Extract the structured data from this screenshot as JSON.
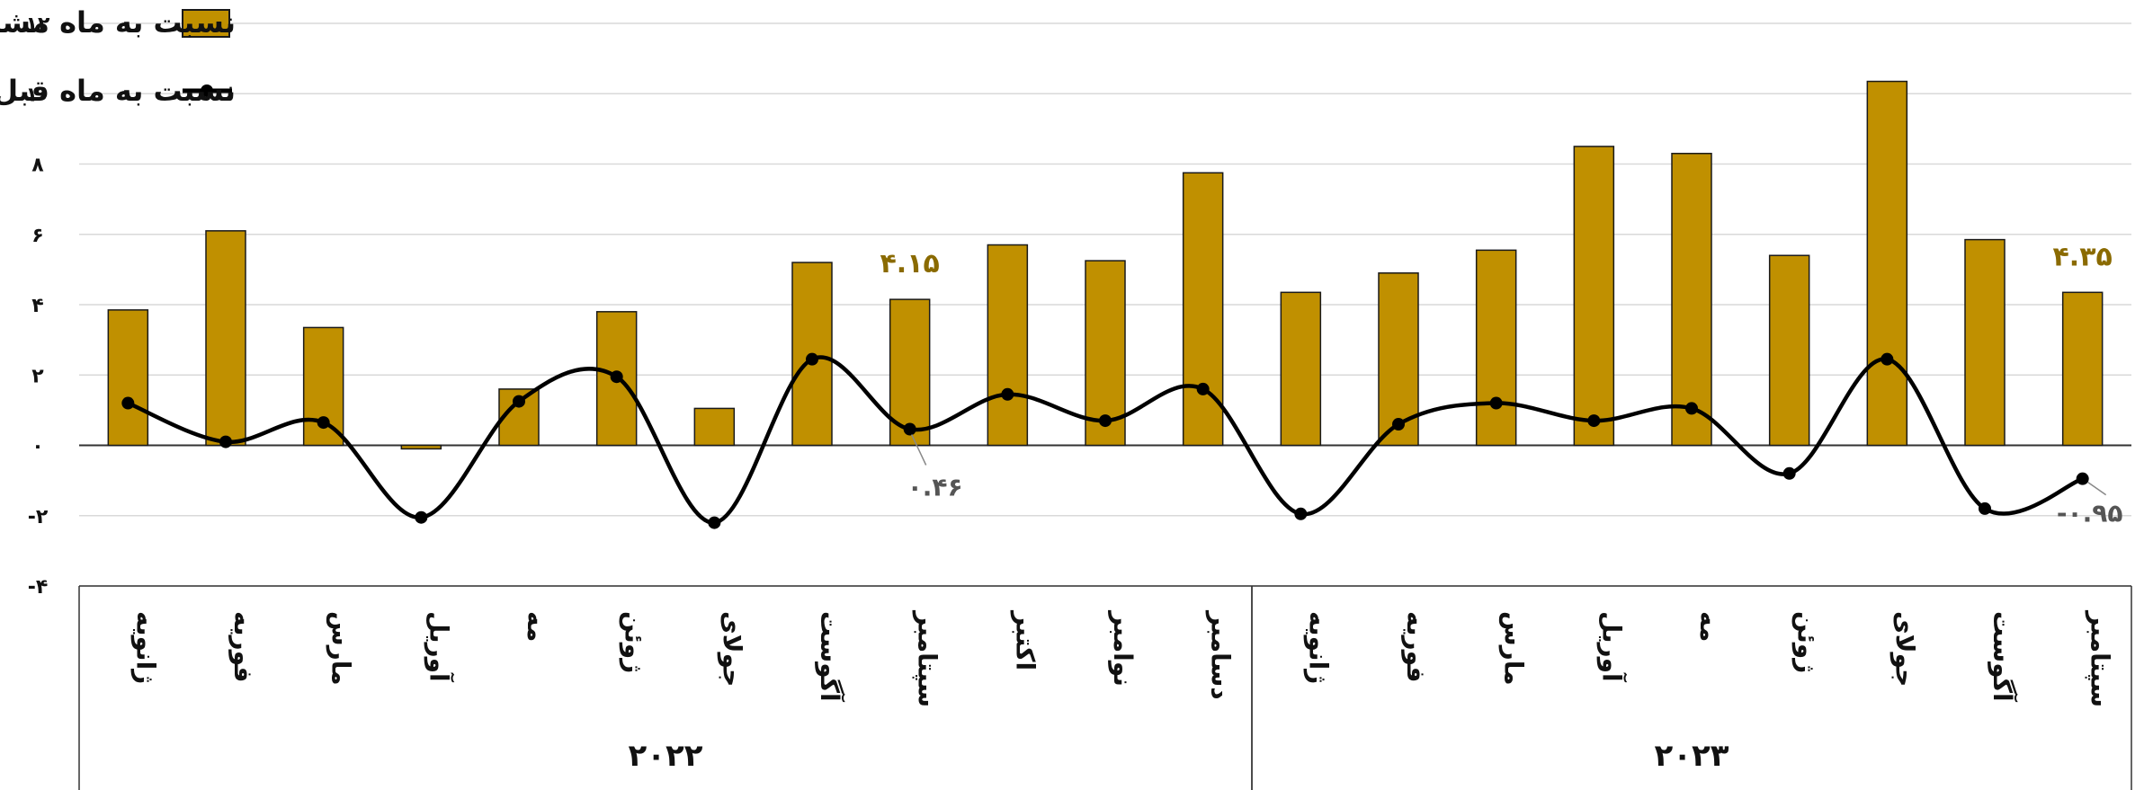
{
  "colors": {
    "bar": "#C09000",
    "bar_stroke": "#1a1a1a",
    "line": "#000000",
    "grid": "#d9d9d9",
    "annotation_gold": "#8a6a00",
    "annotation_gray": "#555555"
  },
  "legend": {
    "bar_label": "نسبت به ماه مشابه سال قبل",
    "line_label": "نسبت به ماه قبل"
  },
  "chart_data": {
    "type": "bar",
    "yticks": [
      "-۴",
      "-۲",
      "۰",
      "۲",
      "۴",
      "۶",
      "۸",
      "۱۰",
      "۱۲"
    ],
    "ytick_values": [
      -4,
      -2,
      0,
      2,
      4,
      6,
      8,
      10,
      12
    ],
    "ylim": [
      -4,
      12
    ],
    "grid": true,
    "legend_position": "top-left",
    "categories": [
      "ژانویه",
      "فوریه",
      "مارس",
      "آوریل",
      "مه",
      "ژوئن",
      "جولای",
      "آگوست",
      "سپتامبر",
      "اکتبر",
      "نوامبر",
      "دسامبر",
      "ژانویه",
      "فوریه",
      "مارس",
      "آوریل",
      "مه",
      "ژوئن",
      "جولای",
      "آگوست",
      "سپتامبر"
    ],
    "groups": [
      {
        "label": "۲۰۲۲",
        "start": 0,
        "count": 12
      },
      {
        "label": "۲۰۲۳",
        "start": 12,
        "count": 9
      }
    ],
    "series": [
      {
        "name": "نسبت به ماه مشابه سال قبل",
        "type": "bar",
        "values": [
          3.85,
          6.1,
          3.35,
          -0.1,
          1.6,
          3.8,
          1.05,
          5.2,
          4.15,
          5.7,
          5.25,
          7.75,
          4.35,
          4.9,
          5.55,
          8.5,
          8.3,
          5.4,
          10.35,
          5.85,
          4.35
        ]
      },
      {
        "name": "نسبت به ماه قبل",
        "type": "line",
        "values": [
          1.2,
          0.1,
          0.65,
          -2.05,
          1.25,
          1.95,
          -2.2,
          2.45,
          0.46,
          1.45,
          0.7,
          1.6,
          -1.95,
          0.6,
          1.2,
          0.7,
          1.05,
          -0.8,
          2.45,
          -1.8,
          -0.95
        ]
      }
    ],
    "annotations": [
      {
        "index": 8,
        "series": "bar",
        "text": "۴.۱۵"
      },
      {
        "index": 20,
        "series": "bar",
        "text": "۴.۳۵"
      },
      {
        "index": 8,
        "series": "line",
        "text": "۰.۴۶"
      },
      {
        "index": 20,
        "series": "line",
        "text": "-۰.۹۵"
      }
    ]
  }
}
